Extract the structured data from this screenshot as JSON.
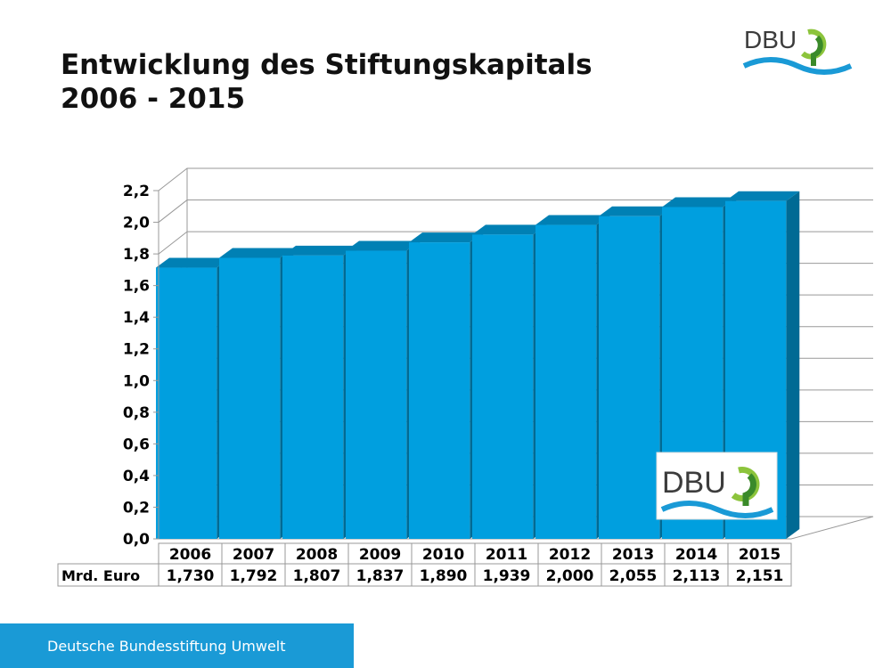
{
  "title_line1": "Entwicklung des Stiftungskapitals",
  "title_line2": "2006 - 2015",
  "logo": {
    "text": "DBU",
    "colors": {
      "text": "#3c3c3c",
      "wave": "#1a9ad6",
      "leaf_light": "#8cc43c",
      "leaf_dark": "#3a8a2a"
    }
  },
  "footer": {
    "text": "Deutsche Bundesstiftung Umwelt",
    "color": "#1a9ad6"
  },
  "chart_data": {
    "type": "bar",
    "three_d": true,
    "categories": [
      "2006",
      "2007",
      "2008",
      "2009",
      "2010",
      "2011",
      "2012",
      "2013",
      "2014",
      "2015"
    ],
    "values": [
      1.73,
      1.792,
      1.807,
      1.837,
      1.89,
      1.939,
      2.0,
      2.055,
      2.113,
      2.151
    ],
    "value_labels": [
      "1,730",
      "1,792",
      "1,807",
      "1,837",
      "1,890",
      "1,939",
      "2,000",
      "2,055",
      "2,113",
      "2,151"
    ],
    "series": [
      {
        "name": "Mrd. Euro",
        "values": [
          1.73,
          1.792,
          1.807,
          1.837,
          1.89,
          1.939,
          2.0,
          2.055,
          2.113,
          2.151
        ]
      }
    ],
    "ylim": [
      0,
      2.2
    ],
    "yticks": [
      "0,0",
      "0,2",
      "0,4",
      "0,6",
      "0,8",
      "1,0",
      "1,2",
      "1,4",
      "1,6",
      "1,8",
      "2,0",
      "2,2"
    ],
    "grid": true,
    "data_table": true,
    "colors": {
      "front": "#009fdf",
      "side": "#006a94",
      "top": "#0080b4"
    }
  }
}
